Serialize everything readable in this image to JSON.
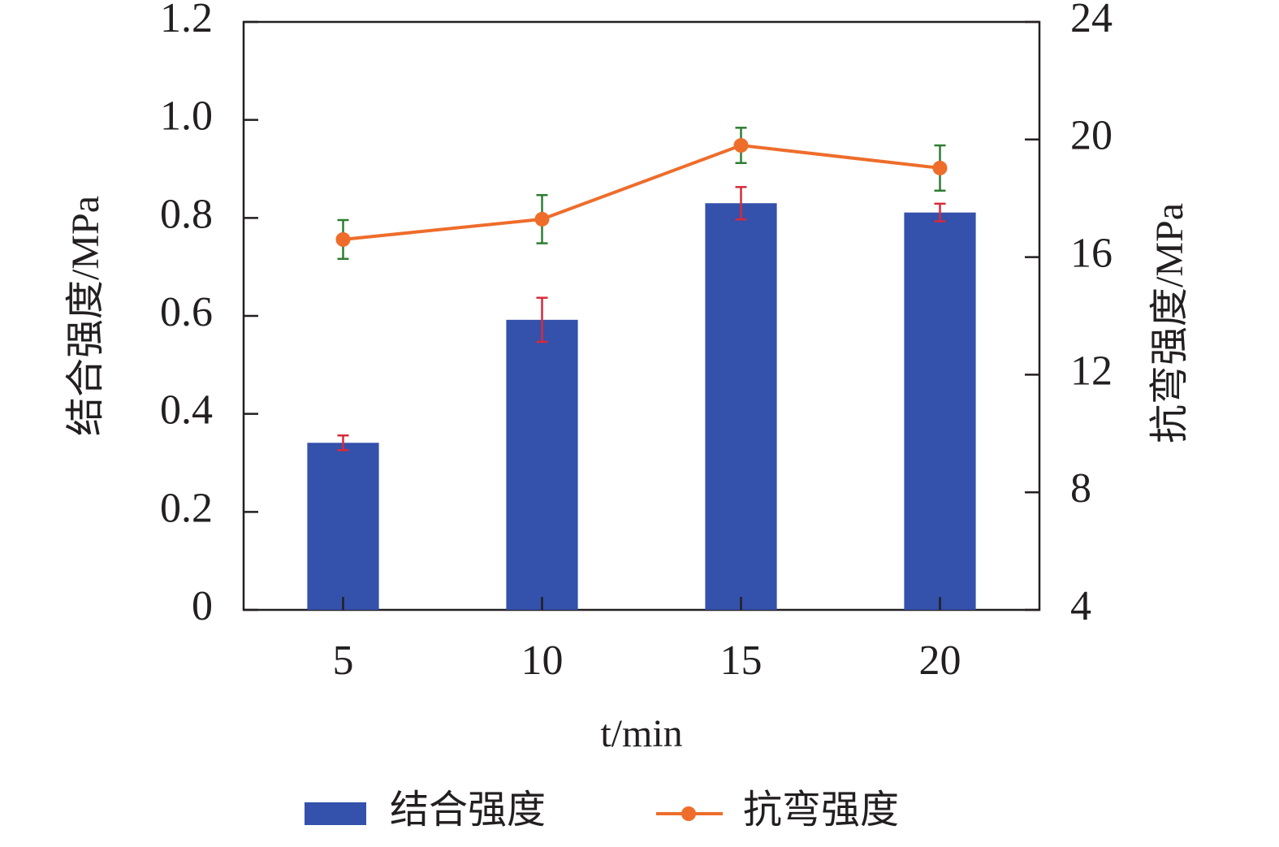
{
  "chart_data": {
    "type": "bar-line",
    "x_label": "t/min",
    "y_label": "结合强度/MPa",
    "y2_label": "抗弯强度/MPa",
    "categories": [
      "5",
      "10",
      "15",
      "20"
    ],
    "ylim": [
      0,
      1.2
    ],
    "yticks": [
      0,
      0.2,
      0.4,
      0.6,
      0.8,
      {
        "value": 1,
        "label": "1.0"
      },
      1.2
    ],
    "y2lim": [
      4,
      24
    ],
    "y2ticks": [
      4,
      8,
      12,
      16,
      20,
      24
    ],
    "series": [
      {
        "name": "结合强度",
        "type": "bar",
        "color": "#3451ab",
        "error_color": "#d62b3a",
        "values": [
          0.341,
          0.592,
          0.83,
          0.811
        ],
        "errors": [
          0.015,
          0.045,
          0.033,
          0.018
        ]
      },
      {
        "name": "抗弯强度",
        "type": "line",
        "axis": "y2",
        "color": "#ee6d2b",
        "error_color": "#2e7d32",
        "values": [
          16.6,
          17.29,
          19.8,
          19.03
        ],
        "errors": [
          0.66,
          0.82,
          0.6,
          0.77
        ]
      }
    ]
  }
}
